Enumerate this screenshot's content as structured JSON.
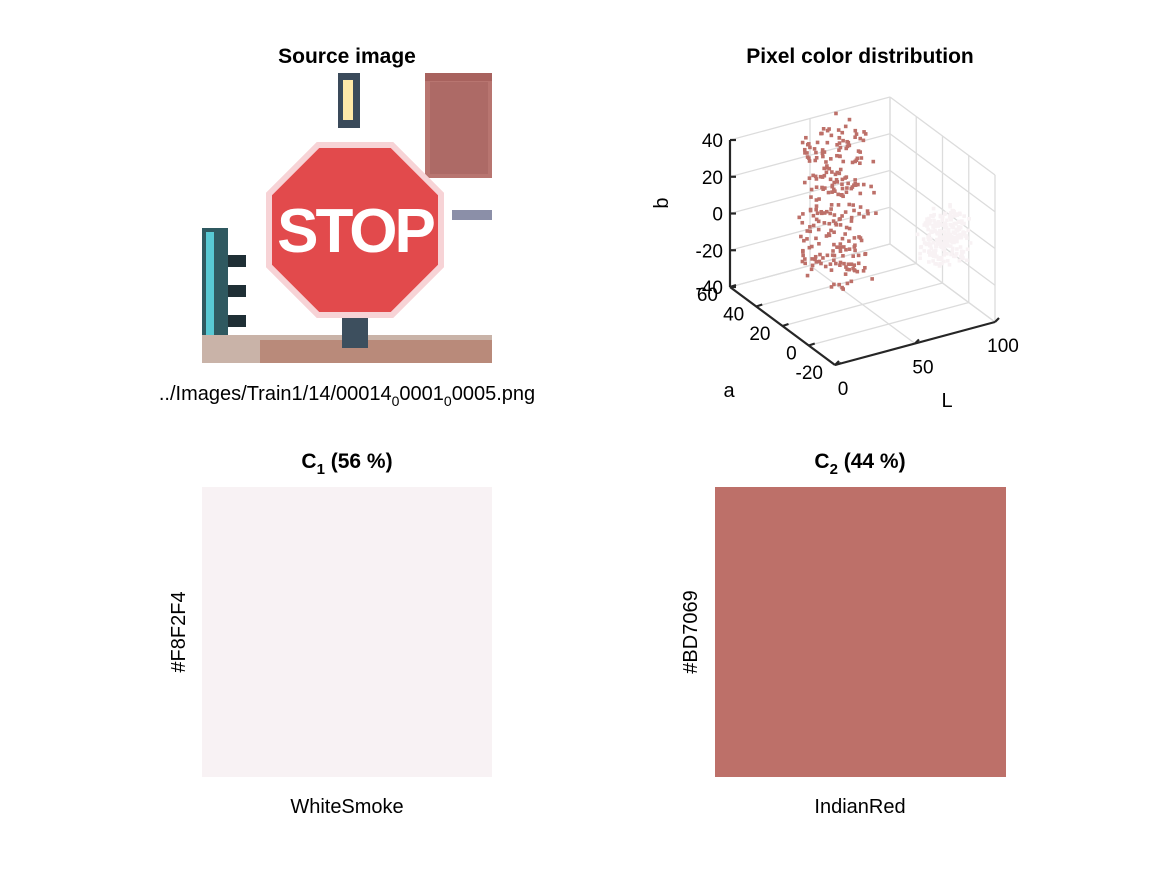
{
  "source_panel": {
    "title": "Source image",
    "filename_parts": [
      "../Images/Train1/14/00014",
      "0",
      "0001",
      "0",
      "0005.png"
    ],
    "sign_text": "STOP"
  },
  "chart_data": [
    {
      "type": "scatter",
      "title": "Pixel color distribution",
      "xlabel": "L",
      "ylabel": "a",
      "zlabel": "b",
      "xticks": [
        0,
        50,
        100
      ],
      "yticks": [
        -20,
        0,
        20,
        40,
        60
      ],
      "zticks": [
        -40,
        -20,
        0,
        20,
        40
      ],
      "xlim": [
        0,
        100
      ],
      "ylim": [
        -20,
        60
      ],
      "zlim": [
        -40,
        40
      ],
      "grid": true,
      "series": [
        {
          "color": "#BD7069",
          "L_range": [
            35,
            65
          ],
          "a_range": [
            25,
            55
          ],
          "b_range": [
            -35,
            45
          ]
        },
        {
          "color": "#F8F2F4",
          "L_range": [
            75,
            98
          ],
          "a_range": [
            -5,
            10
          ],
          "b_range": [
            -15,
            10
          ]
        }
      ]
    },
    {
      "type": "table",
      "swatches": [
        {
          "label_main": "C",
          "label_sub": "1",
          "label_rest": " (56 %)",
          "percent": 56,
          "hex": "#F8F2F4",
          "name": "WhiteSmoke"
        },
        {
          "label_main": "C",
          "label_sub": "2",
          "label_rest": " (44 %)",
          "percent": 44,
          "hex": "#BD7069",
          "name": "IndianRed"
        }
      ]
    }
  ]
}
